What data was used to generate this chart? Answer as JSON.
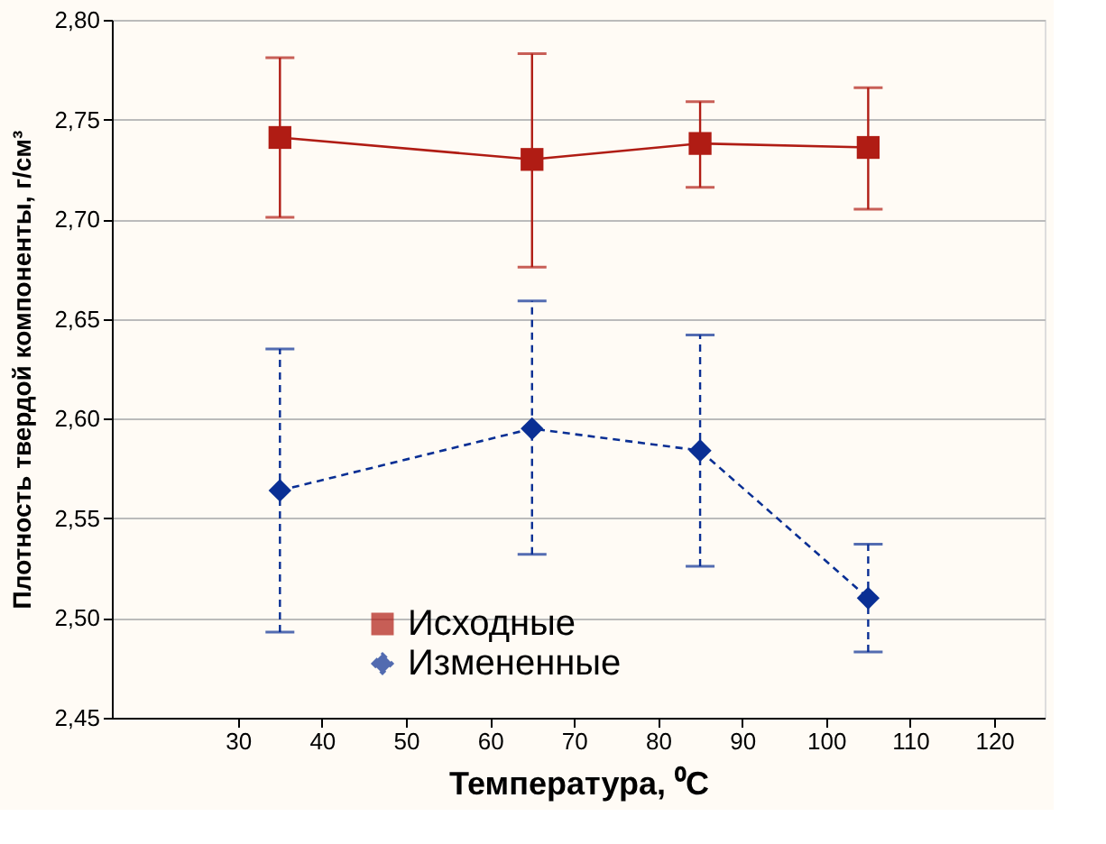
{
  "chart_data": {
    "type": "line",
    "xlabel": "Температура, ⁰C",
    "ylabel": "Плотность твердой компоненты, г/см³",
    "x": [
      35,
      65,
      85,
      105
    ],
    "series": [
      {
        "name": "Исходные",
        "color": "#b01c14",
        "marker": "square",
        "line_style": "solid",
        "values": [
          2.741,
          2.73,
          2.738,
          2.736
        ],
        "errors": [
          [
            2.701,
            2.781
          ],
          [
            2.676,
            2.783
          ],
          [
            2.716,
            2.759
          ],
          [
            2.705,
            2.766
          ]
        ]
      },
      {
        "name": "Измененные",
        "color": "#0a2f94",
        "marker": "diamond",
        "line_style": "dashed",
        "values": [
          2.564,
          2.595,
          2.584,
          2.51
        ],
        "errors": [
          [
            2.493,
            2.635
          ],
          [
            2.532,
            2.659
          ],
          [
            2.526,
            2.642
          ],
          [
            2.483,
            2.537
          ]
        ]
      }
    ],
    "xlim": [
      15,
      126
    ],
    "xticks": [
      30,
      40,
      50,
      60,
      70,
      80,
      90,
      100,
      110,
      120
    ],
    "ylim": [
      2.45,
      2.8
    ],
    "yticks": [
      {
        "value": 2.45,
        "label": "2,45"
      },
      {
        "value": 2.5,
        "label": "2,50"
      },
      {
        "value": 2.55,
        "label": "2,55"
      },
      {
        "value": 2.6,
        "label": "2,60"
      },
      {
        "value": 2.65,
        "label": "2,65"
      },
      {
        "value": 2.7,
        "label": "2,70"
      },
      {
        "value": 2.75,
        "label": "2,75"
      },
      {
        "value": 2.8,
        "label": "2,80"
      }
    ],
    "grid": "y",
    "legend": "bottom"
  }
}
